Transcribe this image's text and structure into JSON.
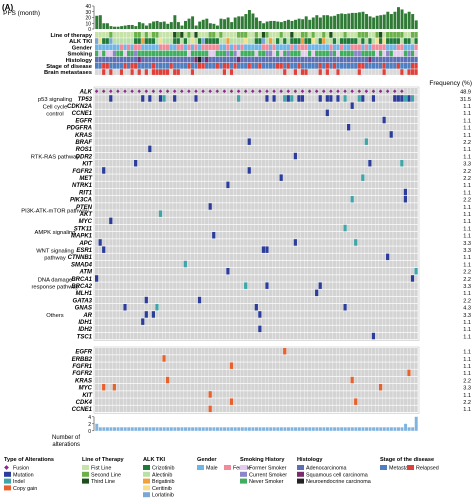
{
  "panel_label": "(A)",
  "frequency_header": "Frequency (%)",
  "legend": [
    {
      "title": "Type of Alterations",
      "items": [
        {
          "label": "Fusion",
          "color": "#8b2a8b",
          "shape": "diamond"
        },
        {
          "label": "Mutation",
          "color": "#2b3c9b"
        },
        {
          "label": "Indel",
          "color": "#3ea5a8"
        },
        {
          "label": "Copy gain",
          "color": "#e8602c"
        }
      ]
    },
    {
      "title": "Line of Therapy",
      "items": [
        {
          "label": "Fist Line",
          "color": "#c7e3a9"
        },
        {
          "label": "Second Line",
          "color": "#6cb04a"
        },
        {
          "label": "Third Line",
          "color": "#1e4d1e"
        }
      ]
    },
    {
      "title": "ALK TKI",
      "items": [
        {
          "label": "Crizotinib",
          "color": "#1f7a3a"
        },
        {
          "label": "Alectinib",
          "color": "#b9e0a8"
        },
        {
          "label": "Brigatinib",
          "color": "#f2a03a"
        },
        {
          "label": "Ceritinib",
          "color": "#f7e08a"
        },
        {
          "label": "Lorlatinib",
          "color": "#7aa7d8"
        }
      ]
    },
    {
      "title": "Gender",
      "items": [
        {
          "label": "Male",
          "color": "#6fb6e6"
        },
        {
          "label": "Female",
          "color": "#f28a9a"
        }
      ]
    },
    {
      "title": "Smoking History",
      "items": [
        {
          "label": "Former Smoker",
          "color": "#e6c9ec"
        },
        {
          "label": "Current Smoker",
          "color": "#8a86c7"
        },
        {
          "label": "Never Smoker",
          "color": "#3fae5e"
        }
      ]
    },
    {
      "title": "Histology",
      "items": [
        {
          "label": "Adenocarcinoma",
          "color": "#5c6fb5"
        },
        {
          "label": "Squamous cell carcinoma",
          "color": "#7a2a6e"
        },
        {
          "label": "Neuroendocrine carcinoma",
          "color": "#222222"
        }
      ]
    },
    {
      "title": "Stage of the disease",
      "items": [
        {
          "label": "Metastatic",
          "color": "#4f7fc0"
        },
        {
          "label": "Relapsed",
          "color": "#e0403a"
        }
      ]
    }
  ],
  "chart_data": {
    "type": "heatmap",
    "n_samples": 91,
    "top_bar": {
      "ylabel": "PFS (month)",
      "yticks": [
        0,
        10,
        20,
        30,
        40
      ],
      "ylim": [
        0,
        40
      ],
      "bar_color": "#2f7a34",
      "values": [
        23,
        24,
        10,
        10,
        5,
        4,
        4,
        5,
        6,
        7,
        7,
        5,
        12,
        10,
        6,
        10,
        13,
        14,
        12,
        13,
        9,
        12,
        24,
        12,
        6,
        14,
        18,
        22,
        6,
        13,
        16,
        18,
        10,
        9,
        6,
        18,
        17,
        20,
        12,
        20,
        22,
        22,
        26,
        33,
        27,
        20,
        14,
        10,
        13,
        14,
        14,
        13,
        12,
        14,
        16,
        14,
        16,
        18,
        17,
        22,
        16,
        20,
        24,
        20,
        24,
        24,
        22,
        23,
        26,
        27,
        26,
        27,
        28,
        28,
        29,
        30,
        26,
        22,
        20,
        23,
        24,
        25,
        30,
        26,
        30,
        38,
        34,
        27,
        30,
        26,
        15
      ]
    },
    "annotation_rows": [
      "Line of therapy",
      "ALK TKI",
      "Gender",
      "Smoking",
      "Histology",
      "Stage of disease",
      "Brain metastases"
    ],
    "blocks": [
      {
        "section": "",
        "genes": [
          {
            "gene": "ALK",
            "frequency": "48.9"
          },
          {
            "gene": "TP53",
            "frequency": "31.5"
          },
          {
            "gene": "CDKN2A",
            "frequency": "1.1"
          },
          {
            "gene": "CCNE1",
            "frequency": "1.1"
          },
          {
            "gene": "EGFR",
            "frequency": "1.1"
          },
          {
            "gene": "PDGFRA",
            "frequency": "1.1"
          },
          {
            "gene": "KRAS",
            "frequency": "1.1"
          },
          {
            "gene": "BRAF",
            "frequency": "2.2"
          },
          {
            "gene": "ROS1",
            "frequency": "1.1"
          },
          {
            "gene": "DDR2",
            "frequency": "1.1"
          },
          {
            "gene": "KIT",
            "frequency": "3.3"
          },
          {
            "gene": "FGFR2",
            "frequency": "2.2"
          },
          {
            "gene": "MET",
            "frequency": "2.2"
          },
          {
            "gene": "NTRK1",
            "frequency": "1.1"
          },
          {
            "gene": "RIT1",
            "frequency": "1.1"
          },
          {
            "gene": "PIK3CA",
            "frequency": "2.2"
          },
          {
            "gene": "PTEN",
            "frequency": "1.1"
          },
          {
            "gene": "AKT",
            "frequency": "1.1"
          },
          {
            "gene": "MYC",
            "frequency": "1.1"
          },
          {
            "gene": "STK11",
            "frequency": "1.1"
          },
          {
            "gene": "MAPK1",
            "frequency": "1.1"
          },
          {
            "gene": "APC",
            "frequency": "3.3"
          },
          {
            "gene": "ESR1",
            "frequency": "3.3"
          },
          {
            "gene": "CTNNB1",
            "frequency": "1.1"
          },
          {
            "gene": "SMAD4",
            "frequency": "1.1"
          },
          {
            "gene": "ATM",
            "frequency": "2.2"
          },
          {
            "gene": "BRCA1",
            "frequency": "2.2"
          },
          {
            "gene": "BRCA2",
            "frequency": "3.3"
          },
          {
            "gene": "MLH1",
            "frequency": "1.1"
          },
          {
            "gene": "GATA3",
            "frequency": "2.2"
          },
          {
            "gene": "GNAS",
            "frequency": "4.3"
          },
          {
            "gene": "AR",
            "frequency": "3.3"
          },
          {
            "gene": "IDH1",
            "frequency": "1.1"
          },
          {
            "gene": "IDH2",
            "frequency": "1.1"
          },
          {
            "gene": "TSC1",
            "frequency": "1.1"
          }
        ]
      },
      {
        "section": "",
        "genes": [
          {
            "gene": "EGFR",
            "frequency": "1.1"
          },
          {
            "gene": "ERBB2",
            "frequency": "1.1"
          },
          {
            "gene": "FGFR1",
            "frequency": "1.1"
          },
          {
            "gene": "FGFR2",
            "frequency": "1.1"
          },
          {
            "gene": "KRAS",
            "frequency": "2.2"
          },
          {
            "gene": "MYC",
            "frequency": "3.3"
          },
          {
            "gene": "KIT",
            "frequency": "1.1"
          },
          {
            "gene": "CDK4",
            "frequency": "2.2"
          },
          {
            "gene": "CCNE1",
            "frequency": "1.1"
          }
        ]
      }
    ],
    "pathway_labels": [
      {
        "text": "p53 signaling",
        "row": 1
      },
      {
        "text": "Cell cycle control",
        "row": 2.5
      },
      {
        "text": "RTK-RAS pathway",
        "row": 9
      },
      {
        "text": "PI3K-ATK-mTOR pathway",
        "row": 16.5
      },
      {
        "text": "AMPK signaling",
        "row": 19.5
      },
      {
        "text": "WNT signaling pathway",
        "row": 22.5
      },
      {
        "text": "DNA damage response pathway",
        "row": 26.5
      },
      {
        "text": "Others",
        "row": 31
      }
    ],
    "bottom_bar": {
      "ylabel": "Number of alterations",
      "yticks": [
        0,
        2,
        4
      ],
      "ylim": [
        0,
        4
      ],
      "bar_color": "#7fb3e0",
      "values": [
        2,
        1,
        1,
        1,
        1,
        1,
        1,
        1,
        1,
        1,
        1,
        1,
        1,
        1,
        1,
        1,
        1,
        1,
        1,
        1,
        1,
        1,
        1,
        1,
        1,
        1,
        1,
        1,
        1,
        1,
        1,
        1,
        1,
        1,
        1,
        1,
        1,
        1,
        1,
        1,
        1,
        1,
        1,
        1,
        1,
        1,
        1,
        1,
        1,
        1,
        1,
        1,
        1,
        1,
        1,
        1,
        1,
        1,
        1,
        1,
        1,
        1,
        1,
        1,
        1,
        1,
        1,
        1,
        1,
        1,
        1,
        1,
        1,
        1,
        1,
        1,
        1,
        1,
        1,
        1,
        1,
        1,
        1,
        1,
        1,
        1,
        1,
        2,
        1,
        1,
        4
      ]
    }
  }
}
